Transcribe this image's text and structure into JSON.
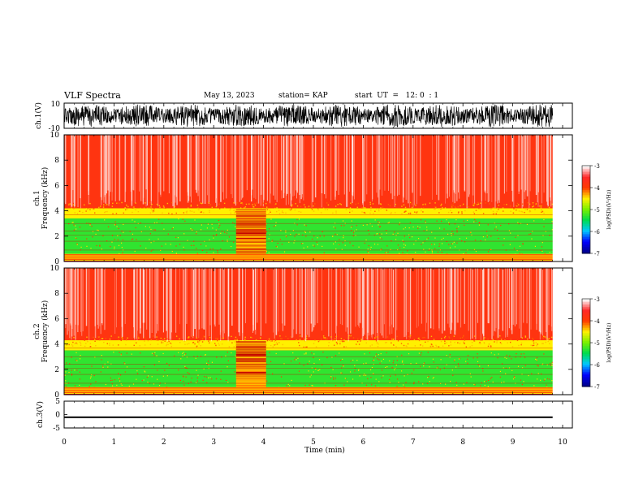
{
  "header": {
    "title": "VLF Spectra",
    "date": "May 13, 2023",
    "station": "station= KAP",
    "start": "start  UT  =   12: 0  : 1"
  },
  "chart_data": [
    {
      "type": "line",
      "panel": "ch1-waveform",
      "ylabel": "ch.1(V)",
      "yticks": [
        "10",
        "-10"
      ],
      "ylim": [
        -10,
        10
      ],
      "xlim": [
        0,
        10
      ],
      "description_values": {
        "x_range_min": [
          0,
          9.8
        ],
        "amplitude_V": 10
      }
    },
    {
      "type": "heatmap",
      "panel": "ch1-spectrogram",
      "ylabel": "ch.1\nFrequency (kHz)",
      "yticks": [
        "0",
        "2",
        "4",
        "6",
        "8",
        "10"
      ],
      "ylim": [
        0,
        10
      ],
      "xlim": [
        0,
        10
      ],
      "colorbar": {
        "label": "log(PSD)(V²/Hz)",
        "ticks": [
          "-3",
          "-4",
          "-5",
          "-6",
          "-7"
        ]
      },
      "bands_kHz_log_psd": [
        {
          "from": 0,
          "to": 0.6,
          "log_psd": -4.3
        },
        {
          "from": 0.6,
          "to": 3.4,
          "log_psd": -5.3
        },
        {
          "from": 3.4,
          "to": 4.2,
          "log_psd": -4.5
        },
        {
          "from": 4.2,
          "to": 10,
          "log_psd": -3.8
        }
      ],
      "disturbance_minutes": [
        3.45,
        4.05
      ]
    },
    {
      "type": "heatmap",
      "panel": "ch2-spectrogram",
      "ylabel": "ch.2\nFrequency (kHz)",
      "yticks": [
        "0",
        "2",
        "4",
        "6",
        "8",
        "10"
      ],
      "ylim": [
        0,
        10
      ],
      "xlim": [
        0,
        10
      ],
      "colorbar": {
        "label": "log(PSD)(V²/Hz)",
        "ticks": [
          "-3",
          "-4",
          "-5",
          "-6",
          "-7"
        ]
      },
      "bands_kHz_log_psd": [
        {
          "from": 0,
          "to": 0.5,
          "log_psd": -4.3
        },
        {
          "from": 0.5,
          "to": 3.5,
          "log_psd": -5.3
        },
        {
          "from": 3.5,
          "to": 4.3,
          "log_psd": -4.5
        },
        {
          "from": 4.3,
          "to": 10,
          "log_psd": -3.8
        }
      ],
      "disturbance_minutes": [
        3.45,
        4.05
      ]
    },
    {
      "type": "line",
      "panel": "ch3-waveform",
      "ylabel": "ch.3(V)",
      "yticks": [
        "5",
        "0",
        "-5"
      ],
      "ylim": [
        -5,
        5
      ],
      "xlim": [
        0,
        10
      ],
      "xlabel": "Time (min)",
      "xticks": [
        "0",
        "1",
        "2",
        "3",
        "4",
        "5",
        "6",
        "7",
        "8",
        "9",
        "10"
      ],
      "level_V": [
        -1.3,
        -0.7
      ]
    }
  ],
  "colors": {
    "background": "#ff2a2a",
    "strong": "#ff0000",
    "mid": "#ffd000",
    "low": "#22e04a",
    "trace": "#000000"
  }
}
